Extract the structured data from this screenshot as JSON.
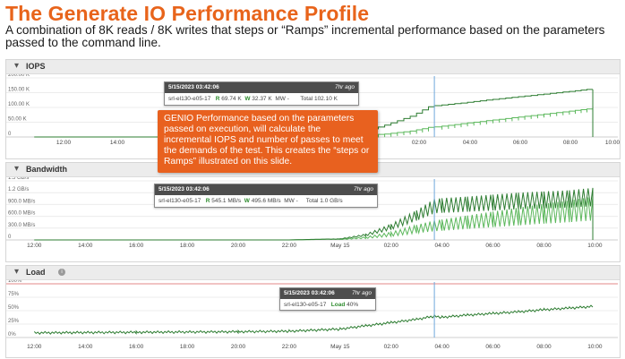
{
  "slide": {
    "title": "The Generate IO Performance Profile",
    "subtitle": "A combination of 8K reads / 8K writes that steps or “Ramps” incremental performance based on the parameters passed to the command line."
  },
  "callout": {
    "text": "GENIO Performance based on the parameters passed on execution, will calculate the incremental IOPS and number of passes to meet the demands of the test.  This creates the “steps or Ramps” illustrated on this slide."
  },
  "colors": {
    "accent": "#e8641b",
    "series": "#2e7d32",
    "series_light": "#5cb85c",
    "cursor": "#6fa8dc",
    "threshold": "#e06666"
  },
  "icons": {
    "collapse": "triangle-down-icon",
    "info": "info-icon"
  },
  "panels": [
    {
      "name": "IOPS",
      "tooltip": {
        "time": "5/15/2023 03:42:06",
        "ago": "7hr ago",
        "host": "srl-el130-e05-17",
        "r_label": "R",
        "r_value": "69.74 K",
        "w_label": "W",
        "w_value": "32.37 K",
        "mw_label": "MW",
        "mw_value": "-",
        "total_label": "Total",
        "total_value": "102.10 K"
      }
    },
    {
      "name": "Bandwidth",
      "tooltip": {
        "time": "5/15/2023 03:42:06",
        "ago": "7hr ago",
        "host": "srl-el130-e05-17",
        "r_label": "R",
        "r_value": "545.1 MB/s",
        "w_label": "W",
        "w_value": "495.6 MB/s",
        "mw_label": "MW",
        "mw_value": "-",
        "total_label": "Total",
        "total_value": "1.0 GB/s"
      }
    },
    {
      "name": "Load",
      "tooltip": {
        "time": "5/15/2023 03:42:06",
        "ago": "7hr ago",
        "host": "srl-el130-e05-17",
        "load_label": "Load",
        "load_value": "40%"
      }
    }
  ],
  "chart_data": [
    {
      "type": "line",
      "title": "IOPS",
      "x_ticks": [
        "12:00",
        "14:00",
        "02:00",
        "04:00",
        "06:00",
        "08:00",
        "10:00"
      ],
      "y_ticks": [
        "0",
        "50.00 K",
        "100.00 K",
        "150.00 K",
        "200.00 K"
      ],
      "ylim": [
        0,
        200000
      ],
      "cursor_time": "03:42",
      "series": [
        {
          "name": "W",
          "x": [
            "12:00",
            "22:00",
            "00:00",
            "01:00",
            "02:00",
            "03:00",
            "03:42",
            "04:00",
            "05:00",
            "06:00",
            "07:00",
            "08:00",
            "09:00",
            "09:55"
          ],
          "values": [
            0,
            0,
            2000,
            5000,
            10000,
            20000,
            32370,
            34000,
            45000,
            55000,
            65000,
            75000,
            85000,
            95000
          ]
        },
        {
          "name": "Total",
          "x": [
            "12:00",
            "22:00",
            "00:00",
            "01:00",
            "02:00",
            "03:00",
            "03:42",
            "04:00",
            "05:00",
            "06:00",
            "07:00",
            "08:00",
            "09:00",
            "09:55"
          ],
          "values": [
            0,
            0,
            3000,
            15000,
            40000,
            70000,
            102100,
            106000,
            115000,
            125000,
            134000,
            143000,
            152000,
            161000
          ]
        }
      ]
    },
    {
      "type": "line",
      "title": "Bandwidth",
      "x_ticks": [
        "12:00",
        "14:00",
        "16:00",
        "18:00",
        "20:00",
        "22:00",
        "May 15",
        "02:00",
        "04:00",
        "06:00",
        "08:00",
        "10:00"
      ],
      "y_ticks": [
        "0",
        "300.0 MB/s",
        "600.0 MB/s",
        "900.0 MB/s",
        "1.2 GB/s",
        "1.5 GB/s"
      ],
      "ylim": [
        0,
        1500
      ],
      "cursor_time": "03:42",
      "series": [
        {
          "name": "W",
          "x": [
            "12:00",
            "22:00",
            "00:00",
            "01:00",
            "02:00",
            "03:00",
            "03:42",
            "04:00",
            "05:00",
            "06:00",
            "07:00",
            "08:00",
            "09:00",
            "09:55"
          ],
          "values": [
            0,
            0,
            20,
            80,
            200,
            380,
            496,
            520,
            620,
            720,
            820,
            920,
            1000,
            1100
          ]
        },
        {
          "name": "Total",
          "x": [
            "12:00",
            "22:00",
            "00:00",
            "01:00",
            "02:00",
            "03:00",
            "03:42",
            "04:00",
            "05:00",
            "06:00",
            "07:00",
            "08:00",
            "09:00",
            "09:55"
          ],
          "values": [
            0,
            0,
            30,
            150,
            400,
            750,
            1040,
            1060,
            1100,
            1150,
            1200,
            1230,
            1260,
            1320
          ]
        }
      ]
    },
    {
      "type": "line",
      "title": "Load",
      "x_ticks": [
        "12:00",
        "14:00",
        "16:00",
        "18:00",
        "20:00",
        "22:00",
        "May 15",
        "02:00",
        "04:00",
        "06:00",
        "08:00",
        "10:00"
      ],
      "y_ticks": [
        "0%",
        "25%",
        "50%",
        "75%",
        "100%"
      ],
      "ylim": [
        0,
        100
      ],
      "threshold": 100,
      "cursor_time": "03:42",
      "series": [
        {
          "name": "Load",
          "x": [
            "12:00",
            "16:00",
            "20:00",
            "22:00",
            "00:00",
            "01:00",
            "02:00",
            "03:00",
            "03:42",
            "04:00",
            "05:00",
            "06:00",
            "07:00",
            "08:00",
            "09:00",
            "09:55"
          ],
          "values": [
            9,
            10,
            11,
            12,
            16,
            22,
            28,
            34,
            40,
            38,
            42,
            45,
            48,
            52,
            55,
            58
          ]
        }
      ]
    }
  ]
}
